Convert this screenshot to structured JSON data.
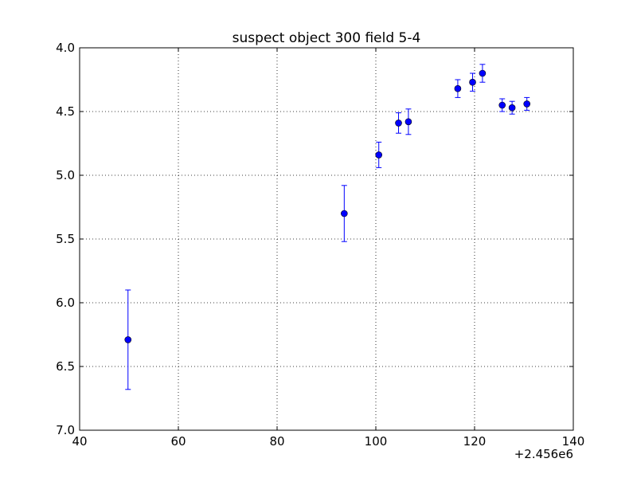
{
  "chart_data": {
    "type": "scatter",
    "title": "suspect object 300 field 5-4",
    "xlabel": "",
    "ylabel": "",
    "x_offset_label": "+2.456e6",
    "xlim": [
      40,
      140
    ],
    "ylim": [
      7.0,
      4.0
    ],
    "y_inverted": true,
    "grid": true,
    "x_ticks": [
      40,
      60,
      80,
      100,
      120,
      140
    ],
    "x_tick_labels": [
      "40",
      "60",
      "80",
      "100",
      "120",
      "140"
    ],
    "y_ticks": [
      4.0,
      4.5,
      5.0,
      5.5,
      6.0,
      6.5,
      7.0
    ],
    "y_tick_labels": [
      "4.0",
      "4.5",
      "5.0",
      "5.5",
      "6.0",
      "6.5",
      "7.0"
    ],
    "marker_color": "#0000ff",
    "series": [
      {
        "points": [
          {
            "x": 49.8,
            "y": 6.29,
            "err": 0.39
          },
          {
            "x": 93.6,
            "y": 5.3,
            "err": 0.22
          },
          {
            "x": 100.6,
            "y": 4.84,
            "err": 0.1
          },
          {
            "x": 104.6,
            "y": 4.59,
            "err": 0.08
          },
          {
            "x": 106.6,
            "y": 4.58,
            "err": 0.1
          },
          {
            "x": 116.6,
            "y": 4.32,
            "err": 0.07
          },
          {
            "x": 119.6,
            "y": 4.27,
            "err": 0.07
          },
          {
            "x": 121.6,
            "y": 4.2,
            "err": 0.07
          },
          {
            "x": 125.6,
            "y": 4.45,
            "err": 0.05
          },
          {
            "x": 127.6,
            "y": 4.47,
            "err": 0.05
          },
          {
            "x": 130.6,
            "y": 4.44,
            "err": 0.05
          }
        ]
      }
    ]
  }
}
